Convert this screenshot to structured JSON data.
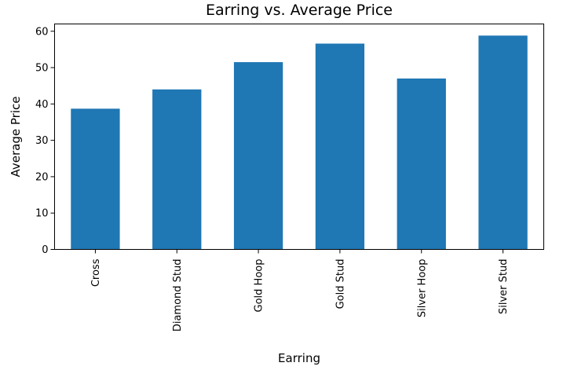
{
  "chart_data": {
    "type": "bar",
    "title": "Earring vs. Average Price",
    "xlabel": "Earring",
    "ylabel": "Average Price",
    "categories": [
      "Cross",
      "Diamond Stud",
      "Gold Hoop",
      "Gold Stud",
      "Silver Hoop",
      "Silver Stud"
    ],
    "values": [
      38.7,
      44.0,
      51.5,
      56.6,
      47.0,
      58.8
    ],
    "ylim": [
      0,
      62
    ],
    "yticks": [
      0,
      10,
      20,
      30,
      40,
      50,
      60
    ],
    "bar_color": "#1f77b4",
    "grid": false,
    "legend": "none"
  }
}
